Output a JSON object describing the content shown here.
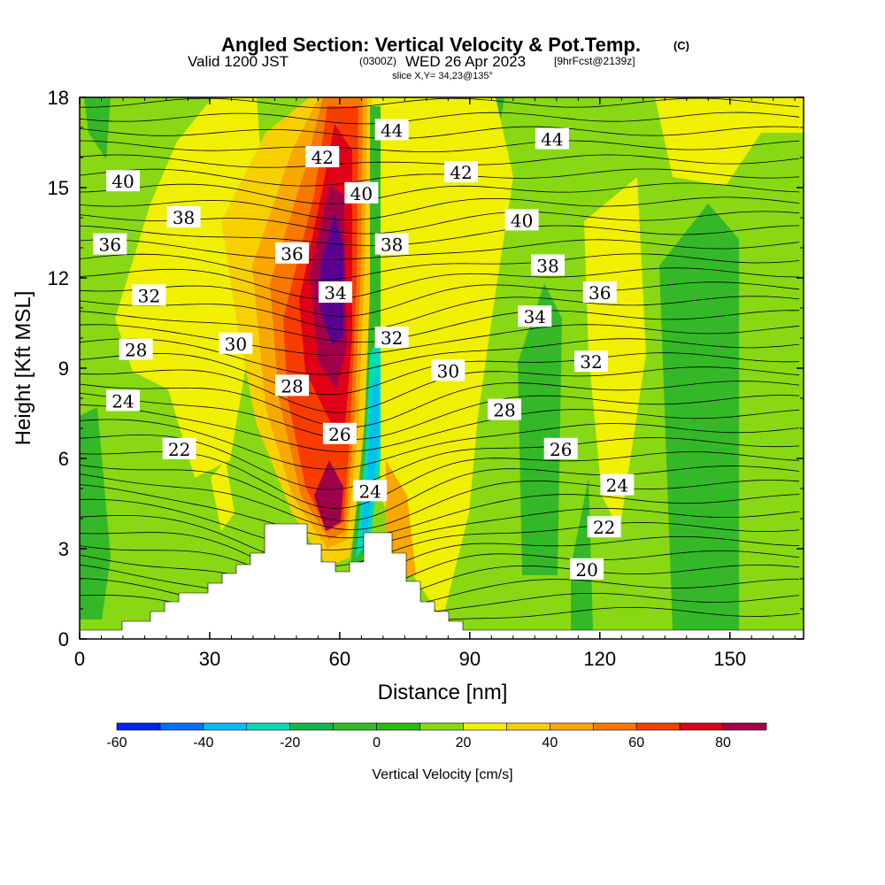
{
  "title": {
    "main": "Angled Section: Vertical Velocity & Pot.Temp.",
    "copyright": "(C)",
    "valid_prefix": "Valid 1200 JST",
    "zulu": "(0300Z)",
    "date": "WED 26 Apr 2023",
    "forecast": "[9hrFcst@2139z]",
    "slice": "slice X,Y= 34,23@135°"
  },
  "chart_data": {
    "type": "heatmap",
    "xlabel": "Distance [nm]",
    "ylabel": "Height [Kft MSL]",
    "xlim": [
      0,
      167
    ],
    "ylim": [
      0,
      18
    ],
    "x_ticks": [
      0,
      30,
      60,
      90,
      120,
      150
    ],
    "y_ticks": [
      0,
      3,
      6,
      9,
      12,
      15,
      18
    ],
    "field": "Vertical Velocity [cm/s]",
    "colorbar": {
      "label": "Vertical Velocity [cm/s]",
      "ticks": [
        -60,
        -40,
        -20,
        0,
        20,
        40,
        60,
        80
      ],
      "bins": [
        -60,
        -50,
        -40,
        -30,
        -20,
        -10,
        0,
        10,
        20,
        30,
        40,
        50,
        60,
        70,
        80,
        90
      ],
      "colors": [
        "#0022ee",
        "#0a6ef5",
        "#00c0f0",
        "#00dcb8",
        "#16b450",
        "#34b828",
        "#2eb814",
        "#88d814",
        "#f0f000",
        "#f8d000",
        "#f8a800",
        "#f87800",
        "#f83c00",
        "#e00018",
        "#a0004a",
        "#5a0090"
      ]
    },
    "contour_field": "Potential Temperature (C)",
    "contour_labels": [
      {
        "text": "44",
        "x": 72,
        "y": 16.9
      },
      {
        "text": "44",
        "x": 109,
        "y": 16.6
      },
      {
        "text": "42",
        "x": 56,
        "y": 16.0
      },
      {
        "text": "42",
        "x": 88,
        "y": 15.5
      },
      {
        "text": "40",
        "x": 10,
        "y": 15.2
      },
      {
        "text": "40",
        "x": 65,
        "y": 14.8
      },
      {
        "text": "40",
        "x": 102,
        "y": 13.9
      },
      {
        "text": "38",
        "x": 24,
        "y": 14.0
      },
      {
        "text": "38",
        "x": 72,
        "y": 13.1
      },
      {
        "text": "38",
        "x": 108,
        "y": 12.4
      },
      {
        "text": "36",
        "x": 7,
        "y": 13.1
      },
      {
        "text": "36",
        "x": 49,
        "y": 12.8
      },
      {
        "text": "36",
        "x": 120,
        "y": 11.5
      },
      {
        "text": "34",
        "x": 59,
        "y": 11.5
      },
      {
        "text": "34",
        "x": 105,
        "y": 10.7
      },
      {
        "text": "32",
        "x": 16,
        "y": 11.4
      },
      {
        "text": "32",
        "x": 72,
        "y": 10.0
      },
      {
        "text": "32",
        "x": 118,
        "y": 9.2
      },
      {
        "text": "30",
        "x": 36,
        "y": 9.8
      },
      {
        "text": "30",
        "x": 85,
        "y": 8.9
      },
      {
        "text": "28",
        "x": 13,
        "y": 9.6
      },
      {
        "text": "28",
        "x": 49,
        "y": 8.4
      },
      {
        "text": "28",
        "x": 98,
        "y": 7.6
      },
      {
        "text": "26",
        "x": 60,
        "y": 6.8
      },
      {
        "text": "26",
        "x": 111,
        "y": 6.3
      },
      {
        "text": "24",
        "x": 10,
        "y": 7.9
      },
      {
        "text": "24",
        "x": 67,
        "y": 4.9
      },
      {
        "text": "24",
        "x": 124,
        "y": 5.1
      },
      {
        "text": "22",
        "x": 23,
        "y": 6.3
      },
      {
        "text": "22",
        "x": 121,
        "y": 3.7
      },
      {
        "text": "20",
        "x": 117,
        "y": 2.3
      }
    ]
  }
}
